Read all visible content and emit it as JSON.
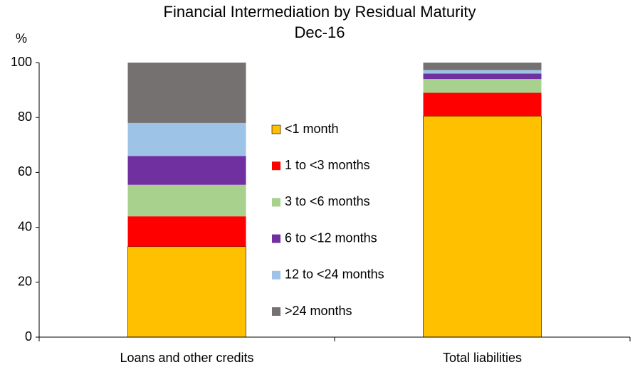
{
  "chart_data": {
    "type": "stacked_bar",
    "title": "Financial Intermediation by Residual Maturity",
    "subtitle": "Dec-16",
    "y_label": "%",
    "categories": [
      "Loans and other credits",
      "Total liabilities"
    ],
    "series": [
      {
        "name": "<1 month",
        "color": "#FFC000",
        "values": [
          33,
          80.5
        ]
      },
      {
        "name": "1 to <3 months",
        "color": "#FF0000",
        "values": [
          11,
          8.5
        ]
      },
      {
        "name": "3 to <6 months",
        "color": "#A9D18E",
        "values": [
          11.5,
          5
        ]
      },
      {
        "name": "6 to <12 months",
        "color": "#7030A0",
        "values": [
          10.5,
          2
        ]
      },
      {
        "name": "12 to <24 months",
        "color": "#9DC3E6",
        "values": [
          12,
          1.3
        ]
      },
      {
        "name": ">24 months",
        "color": "#767171",
        "values": [
          22,
          2.7
        ]
      }
    ],
    "ylim": [
      0,
      100
    ],
    "yticks": [
      0,
      20,
      40,
      60,
      80,
      100
    ]
  }
}
